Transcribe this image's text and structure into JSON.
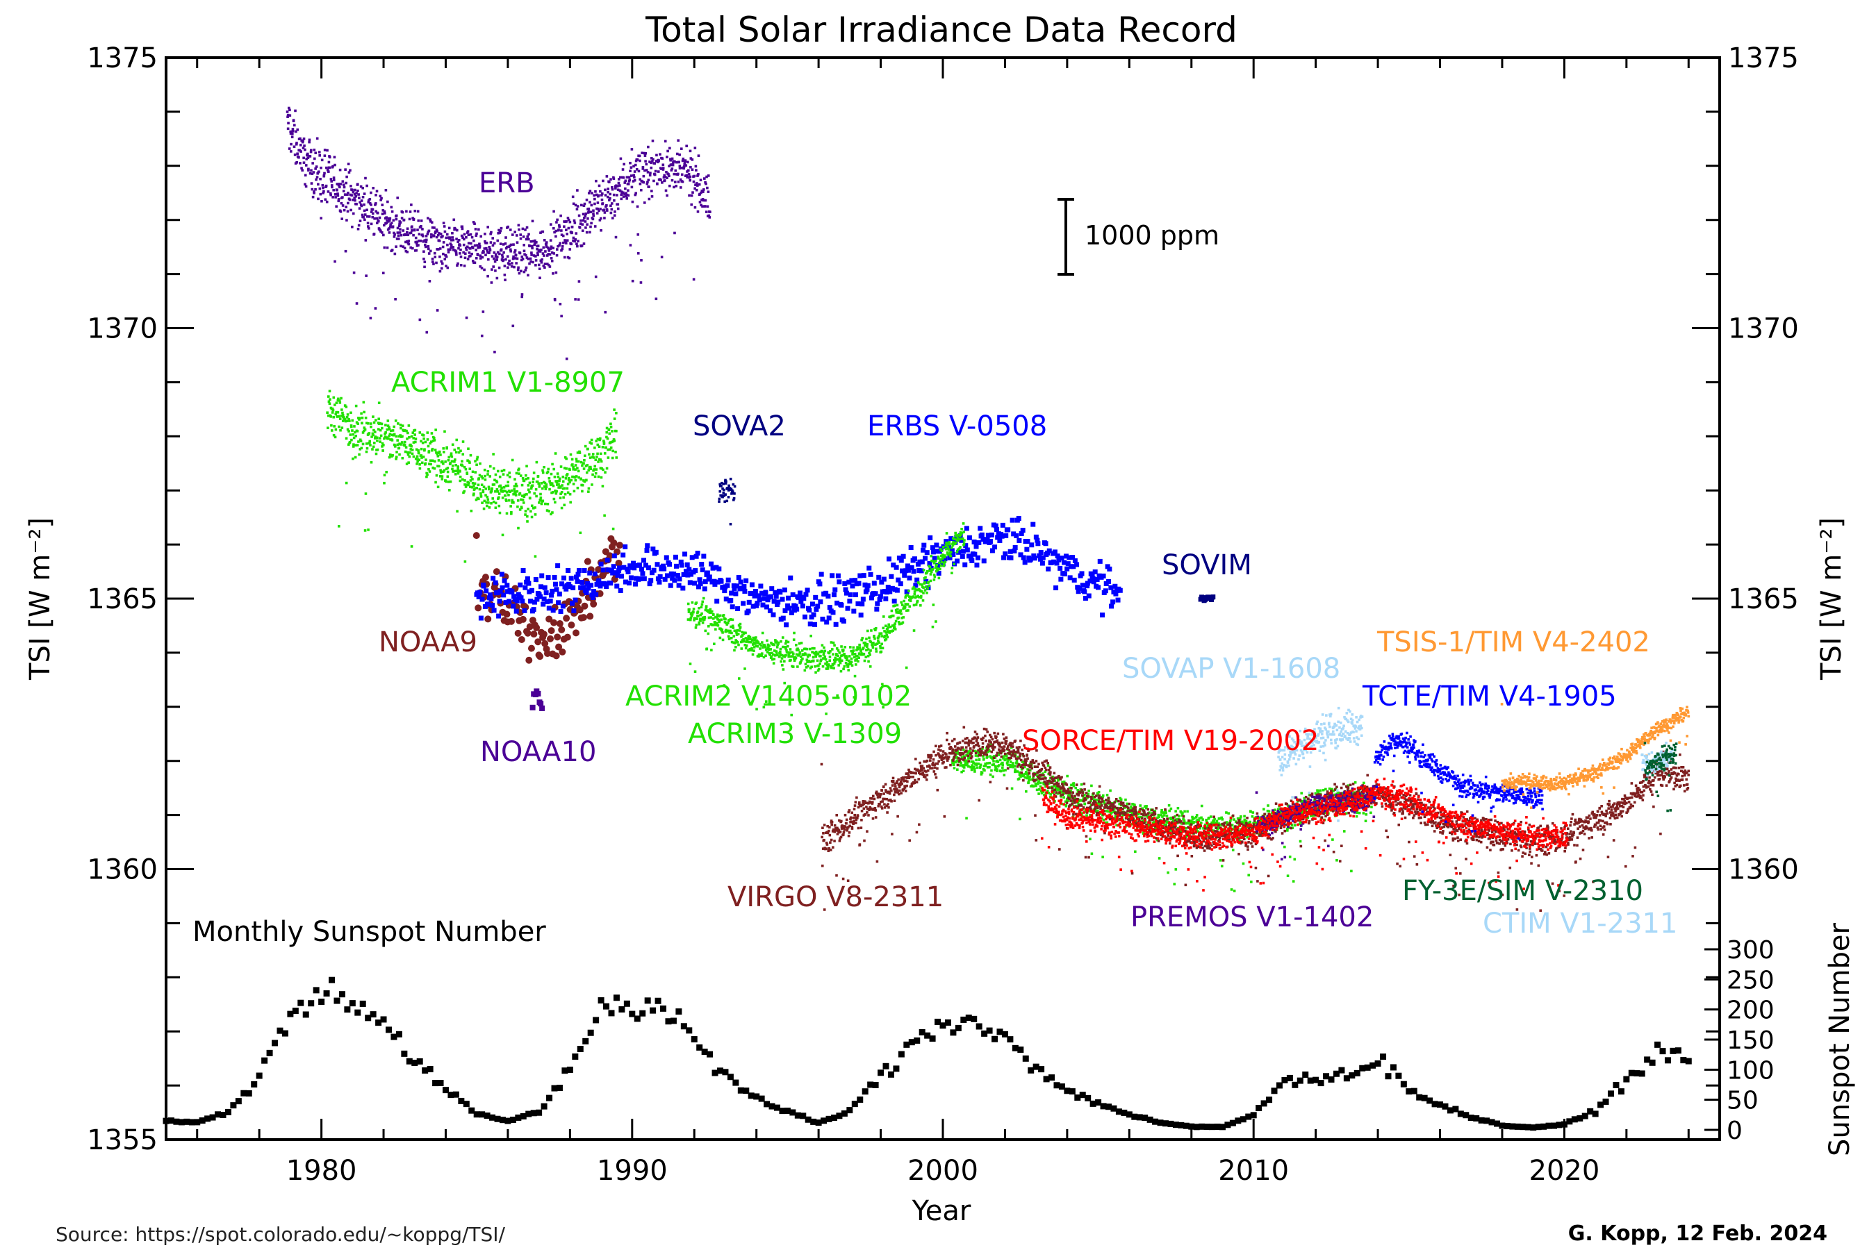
{
  "chart_data": {
    "type": "scatter",
    "title": "Total Solar Irradiance Data Record",
    "xlabel": "Year",
    "ylabel": "TSI [W m⁻²]",
    "y2label": "Sunspot Number",
    "xlim": [
      1975,
      2025
    ],
    "ylim": [
      1355,
      1375
    ],
    "sunspot_ylim": [
      0,
      300
    ],
    "x_ticks": [
      "1980",
      "1990",
      "2000",
      "2010",
      "2020"
    ],
    "y_ticks": [
      "1355",
      "1360",
      "1365",
      "1370",
      "1375"
    ],
    "sunspot_ticks": [
      "0",
      "50",
      "100",
      "150",
      "200",
      "250",
      "300"
    ],
    "scale_bar_label": "1000 ppm",
    "sunspot_label": "Monthly Sunspot Number",
    "source": "Source:  https://spot.colorado.edu/~koppg/TSI/",
    "credit": "G. Kopp, 12 Feb. 2024",
    "series": [
      {
        "name": "ERB",
        "color": "#4b0096",
        "marker": "dot",
        "spread": 0.7,
        "points": [
          [
            1978.9,
            1373.8
          ],
          [
            1979.5,
            1373.1
          ],
          [
            1980,
            1372.8
          ],
          [
            1981,
            1372.4
          ],
          [
            1982,
            1372.0
          ],
          [
            1983,
            1371.7
          ],
          [
            1984,
            1371.5
          ],
          [
            1985,
            1371.5
          ],
          [
            1986,
            1371.4
          ],
          [
            1987,
            1371.4
          ],
          [
            1988,
            1371.8
          ],
          [
            1989,
            1372.3
          ],
          [
            1990,
            1372.8
          ],
          [
            1991,
            1373.0
          ],
          [
            1992,
            1372.8
          ],
          [
            1992.5,
            1372.3
          ]
        ]
      },
      {
        "name": "ACRIM1 V1-8907",
        "color": "#22e000",
        "marker": "dot",
        "spread": 0.7,
        "points": [
          [
            1980.2,
            1368.5
          ],
          [
            1981,
            1368.2
          ],
          [
            1982,
            1368.0
          ],
          [
            1983,
            1367.8
          ],
          [
            1984,
            1367.5
          ],
          [
            1985,
            1367.2
          ],
          [
            1986,
            1367.0
          ],
          [
            1987,
            1367.0
          ],
          [
            1988,
            1367.2
          ],
          [
            1989,
            1367.7
          ],
          [
            1989.5,
            1368.0
          ]
        ]
      },
      {
        "name": "NOAA9",
        "color": "#7f2020",
        "marker": "circle",
        "spread": 0.8,
        "points": [
          [
            1985,
            1365.3
          ],
          [
            1986,
            1364.8
          ],
          [
            1987,
            1364.3
          ],
          [
            1988,
            1364.6
          ],
          [
            1989,
            1365.4
          ],
          [
            1989.6,
            1366.0
          ]
        ]
      },
      {
        "name": "NOAA10",
        "color": "#4b0096",
        "marker": "cross",
        "spread": 0.3,
        "points": [
          [
            1986.8,
            1363.3
          ],
          [
            1987.1,
            1363.0
          ]
        ]
      },
      {
        "name": "ERBS V-0508",
        "color": "#0000ff",
        "marker": "square",
        "spread": 0.6,
        "points": [
          [
            1985,
            1365.0
          ],
          [
            1988,
            1365.2
          ],
          [
            1990,
            1365.6
          ],
          [
            1992,
            1365.5
          ],
          [
            1994,
            1365.0
          ],
          [
            1996,
            1364.9
          ],
          [
            1998,
            1365.2
          ],
          [
            2000,
            1365.8
          ],
          [
            2002,
            1366.1
          ],
          [
            2003,
            1365.9
          ],
          [
            2004,
            1365.5
          ],
          [
            2005.7,
            1365.1
          ]
        ]
      },
      {
        "name": "SOVA2",
        "color": "#000080",
        "marker": "dot",
        "spread": 0.3,
        "points": [
          [
            1992.8,
            1367.0
          ],
          [
            1993.3,
            1367.0
          ]
        ]
      },
      {
        "name": "ACRIM2 V1405-0102",
        "color": "#22e000",
        "marker": "dot",
        "spread": 0.4,
        "points": [
          [
            1991.8,
            1364.8
          ],
          [
            1993,
            1364.5
          ],
          [
            1994,
            1364.1
          ],
          [
            1995,
            1364.0
          ],
          [
            1996,
            1363.9
          ],
          [
            1997,
            1363.9
          ],
          [
            1998,
            1364.3
          ],
          [
            1999,
            1365.0
          ],
          [
            2000,
            1365.8
          ],
          [
            2000.7,
            1366.2
          ]
        ]
      },
      {
        "name": "ACRIM3 V-1309",
        "color": "#22e000",
        "marker": "dot",
        "spread": 0.4,
        "points": [
          [
            2000.3,
            1362.0
          ],
          [
            2002,
            1362.0
          ],
          [
            2004,
            1361.4
          ],
          [
            2006,
            1361.0
          ],
          [
            2008,
            1360.8
          ],
          [
            2010,
            1360.8
          ],
          [
            2012,
            1361.2
          ],
          [
            2013.8,
            1361.3
          ]
        ]
      },
      {
        "name": "VIRGO V8-2311",
        "color": "#7f2020",
        "marker": "dot",
        "spread": 0.4,
        "points": [
          [
            1996.1,
            1360.5
          ],
          [
            1997,
            1360.9
          ],
          [
            1998,
            1361.3
          ],
          [
            1999,
            1361.7
          ],
          [
            2000,
            1362.1
          ],
          [
            2001,
            1362.3
          ],
          [
            2002,
            1362.3
          ],
          [
            2003,
            1361.9
          ],
          [
            2004,
            1361.4
          ],
          [
            2006,
            1361.0
          ],
          [
            2008,
            1360.6
          ],
          [
            2010,
            1360.7
          ],
          [
            2012,
            1361.2
          ],
          [
            2014,
            1361.4
          ],
          [
            2015,
            1361.2
          ],
          [
            2016,
            1360.9
          ],
          [
            2018,
            1360.6
          ],
          [
            2019,
            1360.5
          ],
          [
            2020,
            1360.6
          ],
          [
            2021,
            1360.9
          ],
          [
            2022,
            1361.2
          ],
          [
            2023,
            1361.8
          ],
          [
            2024,
            1361.7
          ]
        ]
      },
      {
        "name": "SOVIM",
        "color": "#000080",
        "marker": "square",
        "spread": 0.05,
        "points": [
          [
            2008.3,
            1365.0
          ],
          [
            2008.7,
            1365.0
          ]
        ]
      },
      {
        "name": "SOVAP V1-1608",
        "color": "#a8d8f8",
        "marker": "dot",
        "spread": 0.5,
        "points": [
          [
            2010.8,
            1362.0
          ],
          [
            2011.5,
            1362.3
          ],
          [
            2012.5,
            1362.6
          ],
          [
            2013.5,
            1362.6
          ]
        ]
      },
      {
        "name": "PREMOS V1-1402",
        "color": "#4b0096",
        "marker": "dot",
        "spread": 0.3,
        "points": [
          [
            2010.1,
            1360.8
          ],
          [
            2011,
            1361.0
          ],
          [
            2012,
            1361.2
          ],
          [
            2013.9,
            1361.3
          ]
        ]
      },
      {
        "name": "SORCE/TIM V19-2002",
        "color": "#ff0000",
        "marker": "dot",
        "spread": 0.35,
        "points": [
          [
            2003.2,
            1361.3
          ],
          [
            2004,
            1361.0
          ],
          [
            2006,
            1360.8
          ],
          [
            2008,
            1360.6
          ],
          [
            2009,
            1360.6
          ],
          [
            2010,
            1360.7
          ],
          [
            2011,
            1361.0
          ],
          [
            2012,
            1361.1
          ],
          [
            2013,
            1361.2
          ],
          [
            2014,
            1361.4
          ],
          [
            2015,
            1361.3
          ],
          [
            2016,
            1361.0
          ],
          [
            2017,
            1360.8
          ],
          [
            2018,
            1360.7
          ],
          [
            2019,
            1360.6
          ],
          [
            2020.1,
            1360.6
          ]
        ]
      },
      {
        "name": "TCTE/TIM V4-1905",
        "color": "#0000ff",
        "marker": "dot",
        "spread": 0.3,
        "points": [
          [
            2013.9,
            1362.0
          ],
          [
            2014.5,
            1362.4
          ],
          [
            2015,
            1362.3
          ],
          [
            2016,
            1361.8
          ],
          [
            2017,
            1361.5
          ],
          [
            2018,
            1361.4
          ],
          [
            2019.3,
            1361.3
          ]
        ]
      },
      {
        "name": "TSIS-1/TIM V4-2402",
        "color": "#ff9933",
        "marker": "dot",
        "spread": 0.2,
        "points": [
          [
            2018,
            1361.6
          ],
          [
            2019,
            1361.6
          ],
          [
            2020,
            1361.6
          ],
          [
            2021,
            1361.8
          ],
          [
            2022,
            1362.1
          ],
          [
            2023,
            1362.6
          ],
          [
            2024,
            1362.9
          ]
        ]
      },
      {
        "name": "CTIM V1-2311",
        "color": "#a8d8f8",
        "marker": "dot",
        "spread": 0.3,
        "points": [
          [
            2022.5,
            1361.9
          ],
          [
            2023.5,
            1362.1
          ]
        ]
      },
      {
        "name": "FY-3E/SIM V-2310",
        "color": "#006030",
        "marker": "dot",
        "spread": 0.35,
        "points": [
          [
            2022.6,
            1361.8
          ],
          [
            2023,
            1362.0
          ],
          [
            2023.6,
            1362.2
          ]
        ]
      }
    ],
    "sunspots": {
      "name": "Monthly Sunspot Number",
      "color": "#000000",
      "points": [
        [
          1975,
          15
        ],
        [
          1976,
          12
        ],
        [
          1977,
          30
        ],
        [
          1978,
          90
        ],
        [
          1979,
          190
        ],
        [
          1980,
          230
        ],
        [
          1981,
          220
        ],
        [
          1982,
          180
        ],
        [
          1983,
          110
        ],
        [
          1984,
          70
        ],
        [
          1985,
          25
        ],
        [
          1986,
          15
        ],
        [
          1987,
          30
        ],
        [
          1988,
          100
        ],
        [
          1989,
          210
        ],
        [
          1990,
          200
        ],
        [
          1991,
          210
        ],
        [
          1992,
          150
        ],
        [
          1993,
          90
        ],
        [
          1994,
          50
        ],
        [
          1995,
          30
        ],
        [
          1996,
          12
        ],
        [
          1997,
          30
        ],
        [
          1998,
          90
        ],
        [
          1999,
          140
        ],
        [
          2000,
          180
        ],
        [
          2001,
          180
        ],
        [
          2002,
          160
        ],
        [
          2003,
          100
        ],
        [
          2004,
          65
        ],
        [
          2005,
          45
        ],
        [
          2006,
          25
        ],
        [
          2007,
          12
        ],
        [
          2008,
          5
        ],
        [
          2009,
          5
        ],
        [
          2010,
          25
        ],
        [
          2011,
          80
        ],
        [
          2012,
          85
        ],
        [
          2013,
          95
        ],
        [
          2014,
          115
        ],
        [
          2015,
          70
        ],
        [
          2016,
          40
        ],
        [
          2017,
          22
        ],
        [
          2018,
          7
        ],
        [
          2019,
          4
        ],
        [
          2020,
          9
        ],
        [
          2021,
          30
        ],
        [
          2022,
          85
        ],
        [
          2023,
          125
        ],
        [
          2024,
          130
        ]
      ]
    }
  }
}
